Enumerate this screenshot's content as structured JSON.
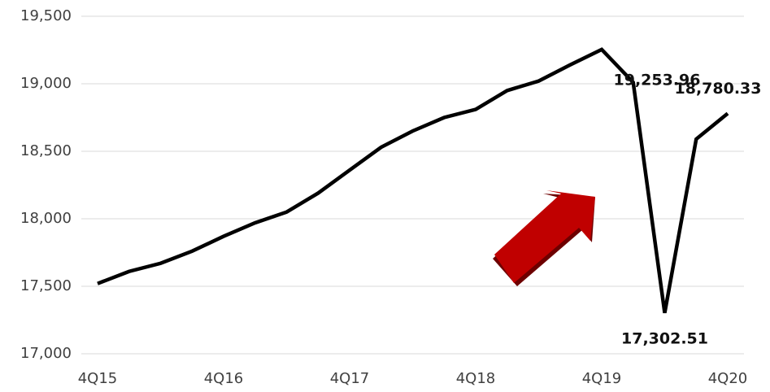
{
  "chart_data": {
    "type": "line",
    "categories": [
      "4Q15",
      null,
      null,
      null,
      "4Q16",
      null,
      null,
      null,
      "4Q17",
      null,
      null,
      null,
      "4Q18",
      null,
      null,
      null,
      "4Q19",
      null,
      null,
      null,
      "4Q20"
    ],
    "series": [
      {
        "name": null,
        "color": "#000000",
        "values": [
          17520,
          17610,
          17670,
          17760,
          17870,
          17970,
          18050,
          18190,
          18360,
          18530,
          18650,
          18750,
          18810,
          18950,
          19020,
          19140,
          19253.96,
          19010,
          17302.51,
          18590,
          18780.33
        ],
        "value_labels": [
          null,
          null,
          null,
          null,
          null,
          null,
          null,
          null,
          null,
          null,
          null,
          null,
          null,
          null,
          null,
          null,
          "19,253.96",
          null,
          "17,302.51",
          null,
          "18,780.33"
        ]
      }
    ],
    "ylim": [
      17000,
      19500
    ],
    "yticks": [
      {
        "value": 17000,
        "label": "17,000"
      },
      {
        "value": 17500,
        "label": "17,500"
      },
      {
        "value": 18000,
        "label": "18,000"
      },
      {
        "value": 18500,
        "label": "18,500"
      },
      {
        "value": 19000,
        "label": "19,000"
      },
      {
        "value": 19500,
        "label": "19,500"
      }
    ],
    "grid": true
  }
}
